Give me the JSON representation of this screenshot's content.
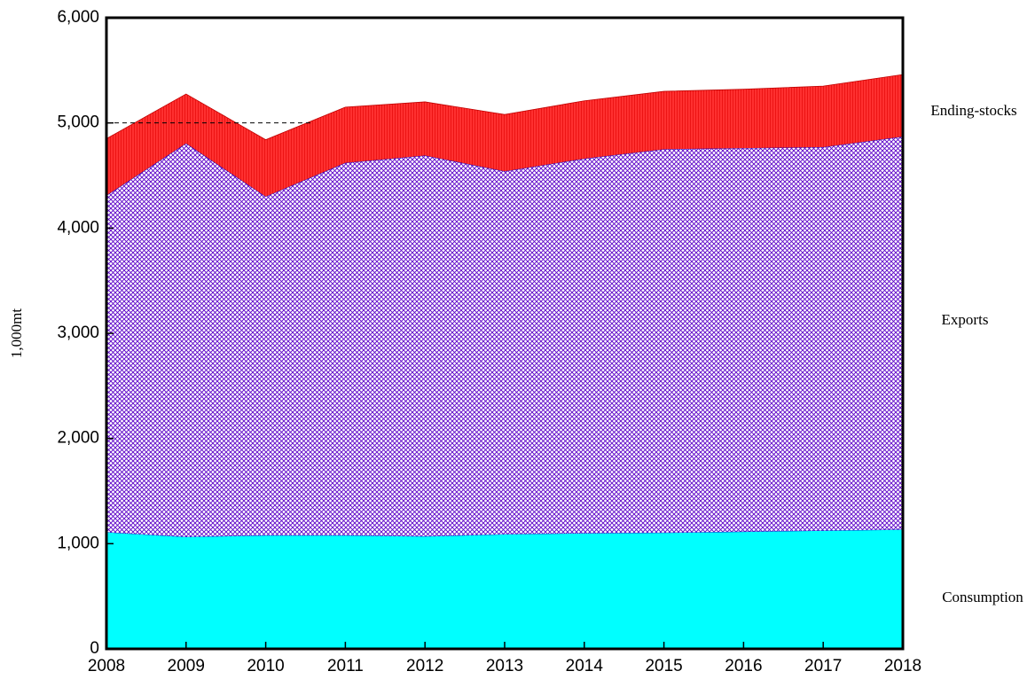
{
  "chart_data": {
    "type": "stacked_area",
    "y_label": "1,000mt",
    "x": [
      2008,
      2009,
      2010,
      2011,
      2012,
      2013,
      2014,
      2015,
      2016,
      2017,
      2018
    ],
    "series": [
      {
        "name": "Consumption",
        "color": "#00ffff",
        "values": [
          1110,
          1065,
          1080,
          1080,
          1070,
          1090,
          1100,
          1105,
          1115,
          1125,
          1135
        ]
      },
      {
        "name": "Exports",
        "color": "#5b00c8",
        "values": [
          3200,
          3740,
          3220,
          3540,
          3620,
          3450,
          3560,
          3645,
          3645,
          3645,
          3735
        ]
      },
      {
        "name": "Ending-stocks",
        "color": "#ff3030",
        "values": [
          540,
          470,
          540,
          530,
          510,
          540,
          550,
          550,
          560,
          580,
          590
        ]
      }
    ],
    "xlim": [
      2008,
      2018
    ],
    "xticks": [
      2008,
      2009,
      2010,
      2011,
      2012,
      2013,
      2014,
      2015,
      2016,
      2017,
      2018
    ],
    "ylim": [
      0,
      6000
    ],
    "yticks": [
      0,
      {
        "value": 1000,
        "label": "1,000"
      },
      {
        "value": 2000,
        "label": "2,000"
      },
      {
        "value": 3000,
        "label": "3,000"
      },
      {
        "value": 4000,
        "label": "4,000"
      },
      {
        "value": 5000,
        "label": "5,000"
      },
      {
        "value": 6000,
        "label": "6,000"
      }
    ],
    "reference_line": 5000
  }
}
